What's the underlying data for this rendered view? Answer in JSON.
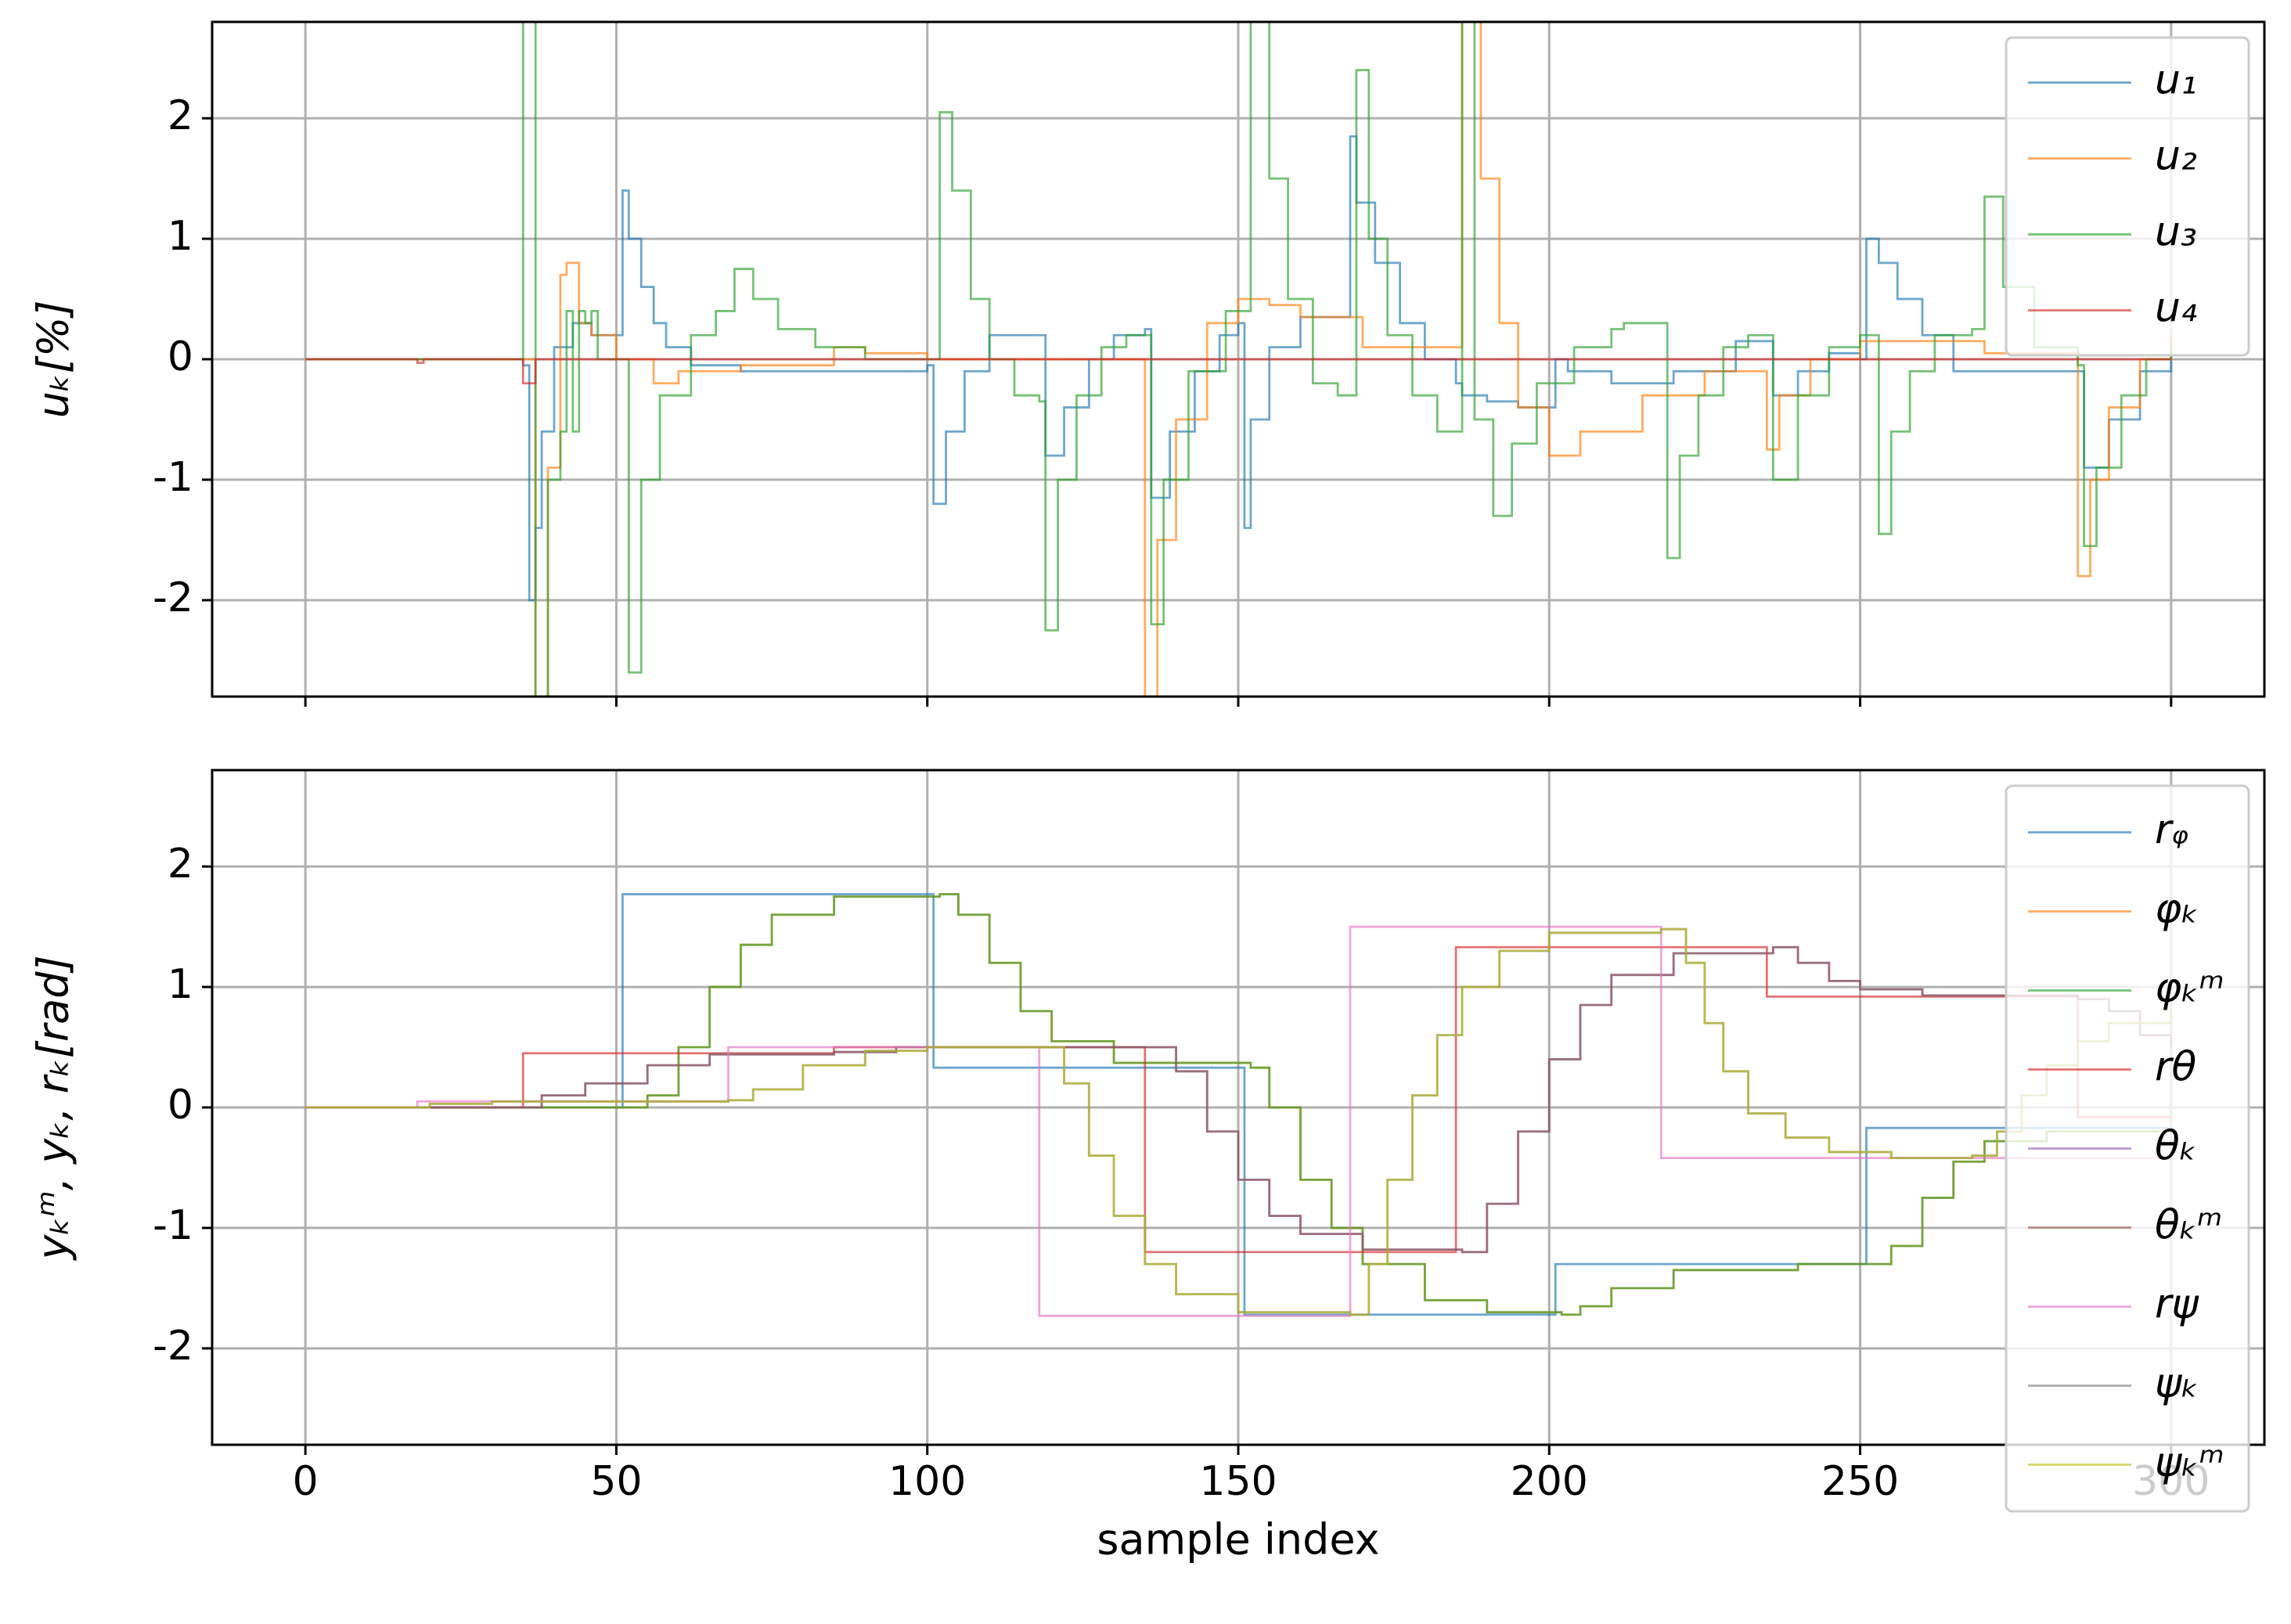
{
  "chart_data": [
    {
      "type": "line",
      "step": true,
      "xtick_labels": false,
      "ylabel": "uₖ[%]",
      "xlim": [
        -15,
        315
      ],
      "ylim": [
        -2.8,
        2.8
      ],
      "xticks": [
        0,
        50,
        100,
        150,
        200,
        250,
        300
      ],
      "yticks": [
        -2,
        -1,
        0,
        1,
        2
      ],
      "grid": true,
      "legend": "upper right",
      "series": [
        {
          "name": "u₁",
          "color": "#1f77b4",
          "x": [
            0,
            35,
            36,
            37,
            38,
            40,
            43,
            46,
            51,
            52,
            54,
            56,
            58,
            62,
            70,
            80,
            100,
            101,
            103,
            106,
            110,
            118,
            119,
            122,
            126,
            130,
            135,
            136,
            139,
            143,
            147,
            150,
            151,
            152,
            155,
            160,
            168,
            169,
            172,
            176,
            180,
            185,
            186,
            190,
            195,
            200,
            201,
            203,
            210,
            220,
            230,
            235,
            236,
            240,
            245,
            250,
            251,
            253,
            256,
            260,
            265,
            285,
            286,
            290,
            295,
            300
          ],
          "values": [
            0,
            -0.05,
            -2.0,
            -1.4,
            -0.6,
            0.1,
            0.3,
            0.2,
            1.4,
            1.0,
            0.6,
            0.3,
            0.1,
            -0.05,
            -0.1,
            -0.1,
            -0.05,
            -1.2,
            -0.6,
            -0.1,
            0.2,
            0.2,
            -0.8,
            -0.4,
            0.0,
            0.2,
            0.25,
            -1.15,
            -0.6,
            -0.1,
            0.2,
            0.3,
            -1.4,
            -0.5,
            0.1,
            0.35,
            1.85,
            1.3,
            0.8,
            0.3,
            0.0,
            -0.2,
            -0.3,
            -0.35,
            -0.4,
            -0.4,
            0.0,
            -0.1,
            -0.2,
            -0.1,
            0.15,
            0.15,
            -0.3,
            -0.1,
            0.05,
            0.0,
            1.0,
            0.8,
            0.5,
            0.2,
            -0.1,
            -0.1,
            -0.9,
            -0.5,
            -0.1,
            0.2
          ]
        },
        {
          "name": "u₂",
          "color": "#ff7f0e",
          "x": [
            0,
            36,
            37,
            39,
            41,
            42,
            44,
            46,
            50,
            56,
            60,
            70,
            85,
            90,
            100,
            135,
            137,
            140,
            145,
            150,
            155,
            160,
            170,
            186,
            189,
            192,
            195,
            200,
            205,
            215,
            225,
            235,
            237,
            242,
            250,
            270,
            285,
            287,
            290,
            295,
            300
          ],
          "values": [
            0,
            0,
            -3,
            -0.9,
            0.7,
            0.8,
            0.3,
            0.2,
            0,
            -0.2,
            -0.1,
            -0.05,
            0.1,
            0.05,
            0,
            -3,
            -1.5,
            -0.5,
            0.3,
            0.5,
            0.45,
            0.35,
            0.1,
            3,
            1.5,
            0.3,
            -0.4,
            -0.8,
            -0.6,
            -0.3,
            -0.1,
            -0.75,
            -0.3,
            0,
            0.15,
            0.05,
            -1.8,
            -1,
            -0.4,
            0,
            0.2
          ]
        },
        {
          "name": "u₃",
          "color": "#2ca02c",
          "x": [
            0,
            35,
            37,
            39,
            41,
            42,
            43,
            44,
            45,
            46,
            47,
            52,
            54,
            57,
            62,
            66,
            69,
            72,
            76,
            82,
            90,
            102,
            104,
            107,
            110,
            114,
            118,
            119,
            121,
            124,
            128,
            132,
            136,
            138,
            142,
            148,
            152,
            155,
            158,
            162,
            166,
            169,
            171,
            174,
            178,
            182,
            186,
            188,
            191,
            194,
            198,
            204,
            210,
            212,
            219,
            221,
            224,
            228,
            232,
            236,
            240,
            245,
            250,
            253,
            255,
            258,
            262,
            268,
            270,
            273,
            278,
            285,
            286,
            288,
            292,
            296,
            300
          ],
          "values": [
            0,
            3,
            -3,
            -1,
            -0.6,
            0.4,
            -0.6,
            0.4,
            0.3,
            0.4,
            0,
            -2.6,
            -1,
            -0.3,
            0.2,
            0.4,
            0.75,
            0.5,
            0.25,
            0.1,
            0,
            2.05,
            1.4,
            0.5,
            0,
            -0.3,
            -0.35,
            -2.25,
            -1,
            -0.3,
            0.1,
            0.2,
            -2.2,
            -1,
            -0.1,
            0.4,
            2.8,
            1.5,
            0.5,
            -0.2,
            -0.3,
            2.4,
            1,
            0.2,
            -0.3,
            -0.6,
            3,
            -0.5,
            -1.3,
            -0.7,
            -0.2,
            0.1,
            0.25,
            0.3,
            -1.65,
            -0.8,
            -0.3,
            0.1,
            0.2,
            -1,
            -0.3,
            0.1,
            0.2,
            -1.45,
            -0.6,
            -0.1,
            0.2,
            0.25,
            1.35,
            0.6,
            0.1,
            -0.05,
            -1.55,
            -0.9,
            -0.3,
            0,
            0.1
          ]
        },
        {
          "name": "u₄",
          "color": "#d62728",
          "x": [
            0,
            18,
            19,
            35,
            37,
            300
          ],
          "values": [
            0,
            -0.03,
            0,
            -0.2,
            0,
            0
          ]
        }
      ]
    },
    {
      "type": "line",
      "step": true,
      "xtick_labels": true,
      "xlabel": "sample index",
      "ylabel": "yₖᵐ, yₖ, rₖ[rad]",
      "xlim": [
        -15,
        315
      ],
      "ylim": [
        -2.8,
        2.8
      ],
      "xticks": [
        0,
        50,
        100,
        150,
        200,
        250,
        300
      ],
      "yticks": [
        -2,
        -1,
        0,
        1,
        2
      ],
      "grid": true,
      "legend": "upper right",
      "series": [
        {
          "name": "rᵩ",
          "color": "#1f77b4",
          "x": [
            0,
            51,
            101,
            151,
            201,
            251,
            300
          ],
          "values": [
            0,
            1.77,
            0.33,
            -1.72,
            -1.3,
            -0.17,
            -0.17
          ]
        },
        {
          "name": "φₖ",
          "color": "#ff7f0e",
          "x": [
            0,
            52,
            55,
            60,
            65,
            70,
            75,
            85,
            102,
            105,
            110,
            115,
            120,
            130,
            152,
            155,
            160,
            165,
            170,
            180,
            190,
            202,
            205,
            210,
            220,
            240,
            252,
            255,
            260,
            265,
            270,
            280,
            300
          ],
          "values": [
            0,
            0,
            0.1,
            0.5,
            1.0,
            1.35,
            1.6,
            1.75,
            1.77,
            1.6,
            1.2,
            0.8,
            0.55,
            0.37,
            0.33,
            0.0,
            -0.6,
            -1.0,
            -1.3,
            -1.6,
            -1.7,
            -1.72,
            -1.65,
            -1.5,
            -1.35,
            -1.3,
            -1.3,
            -1.15,
            -0.75,
            -0.45,
            -0.28,
            -0.2,
            -0.17
          ]
        },
        {
          "name": "φₖᵐ",
          "color": "#2ca02c",
          "x": [
            0,
            52,
            55,
            60,
            65,
            70,
            75,
            85,
            102,
            105,
            110,
            115,
            120,
            130,
            152,
            155,
            160,
            165,
            170,
            180,
            190,
            202,
            205,
            210,
            220,
            240,
            252,
            255,
            260,
            265,
            270,
            280,
            300
          ],
          "values": [
            0,
            0,
            0.1,
            0.5,
            1.0,
            1.35,
            1.6,
            1.75,
            1.77,
            1.6,
            1.2,
            0.8,
            0.55,
            0.37,
            0.33,
            0.0,
            -0.6,
            -1.0,
            -1.3,
            -1.6,
            -1.7,
            -1.72,
            -1.65,
            -1.5,
            -1.35,
            -1.3,
            -1.3,
            -1.15,
            -0.75,
            -0.45,
            -0.28,
            -0.2,
            -0.17
          ]
        },
        {
          "name": "rθ",
          "color": "#d62728",
          "x": [
            0,
            35,
            85,
            135,
            185,
            235,
            285,
            300
          ],
          "values": [
            0,
            0.45,
            0.5,
            -1.2,
            1.33,
            0.92,
            -0.08,
            -0.08
          ]
        },
        {
          "name": "θₖ",
          "color": "#9467bd",
          "x": [
            0,
            36,
            38,
            45,
            55,
            65,
            85,
            95,
            136,
            140,
            145,
            150,
            155,
            160,
            170,
            186,
            190,
            195,
            200,
            205,
            210,
            220,
            236,
            240,
            245,
            250,
            260,
            285,
            290,
            295,
            300
          ],
          "values": [
            0,
            0,
            0.1,
            0.2,
            0.35,
            0.44,
            0.46,
            0.5,
            0.5,
            0.3,
            -0.2,
            -0.6,
            -0.9,
            -1.05,
            -1.18,
            -1.2,
            -0.8,
            -0.2,
            0.4,
            0.85,
            1.1,
            1.28,
            1.33,
            1.2,
            1.05,
            0.98,
            0.93,
            0.9,
            0.8,
            0.6,
            0.5
          ]
        },
        {
          "name": "θₖᵐ",
          "color": "#8c564b",
          "x": [
            0,
            36,
            38,
            45,
            55,
            65,
            85,
            95,
            136,
            140,
            145,
            150,
            155,
            160,
            170,
            186,
            190,
            195,
            200,
            205,
            210,
            220,
            236,
            240,
            245,
            250,
            260,
            285,
            290,
            295,
            300
          ],
          "values": [
            0,
            0,
            0.1,
            0.2,
            0.35,
            0.44,
            0.46,
            0.5,
            0.5,
            0.3,
            -0.2,
            -0.6,
            -0.9,
            -1.05,
            -1.18,
            -1.2,
            -0.8,
            -0.2,
            0.4,
            0.85,
            1.1,
            1.28,
            1.33,
            1.2,
            1.05,
            0.98,
            0.93,
            0.9,
            0.8,
            0.6,
            0.5
          ]
        },
        {
          "name": "rψ",
          "color": "#e377c2",
          "x": [
            0,
            18,
            68,
            118,
            168,
            218,
            300
          ],
          "values": [
            0,
            0.05,
            0.5,
            -1.73,
            1.5,
            -0.42,
            -0.42
          ]
        },
        {
          "name": "ψₖ",
          "color": "#7f7f7f",
          "x": [
            0,
            18,
            20,
            30,
            68,
            72,
            80,
            90,
            100,
            118,
            122,
            126,
            130,
            135,
            140,
            150,
            168,
            171,
            174,
            178,
            182,
            186,
            192,
            200,
            218,
            222,
            225,
            228,
            232,
            238,
            245,
            255,
            268,
            272,
            276,
            280,
            285,
            290,
            300
          ],
          "values": [
            0,
            0,
            0.03,
            0.05,
            0.06,
            0.15,
            0.35,
            0.47,
            0.5,
            0.5,
            0.2,
            -0.4,
            -0.9,
            -1.3,
            -1.55,
            -1.7,
            -1.72,
            -1.3,
            -0.6,
            0.1,
            0.6,
            1.0,
            1.3,
            1.45,
            1.48,
            1.2,
            0.7,
            0.3,
            -0.05,
            -0.25,
            -0.37,
            -0.42,
            -0.4,
            -0.2,
            0.1,
            0.35,
            0.55,
            0.7,
            0.8
          ]
        },
        {
          "name": "ψₖᵐ",
          "color": "#bcbd22",
          "x": [
            0,
            18,
            20,
            30,
            68,
            72,
            80,
            90,
            100,
            118,
            122,
            126,
            130,
            135,
            140,
            150,
            168,
            171,
            174,
            178,
            182,
            186,
            192,
            200,
            218,
            222,
            225,
            228,
            232,
            238,
            245,
            255,
            268,
            272,
            276,
            280,
            285,
            290,
            300
          ],
          "values": [
            0,
            0,
            0.03,
            0.05,
            0.06,
            0.15,
            0.35,
            0.47,
            0.5,
            0.5,
            0.2,
            -0.4,
            -0.9,
            -1.3,
            -1.55,
            -1.7,
            -1.72,
            -1.3,
            -0.6,
            0.1,
            0.6,
            1.0,
            1.3,
            1.45,
            1.48,
            1.2,
            0.7,
            0.3,
            -0.05,
            -0.25,
            -0.37,
            -0.42,
            -0.4,
            -0.2,
            0.1,
            0.35,
            0.55,
            0.7,
            0.8
          ]
        }
      ]
    }
  ]
}
